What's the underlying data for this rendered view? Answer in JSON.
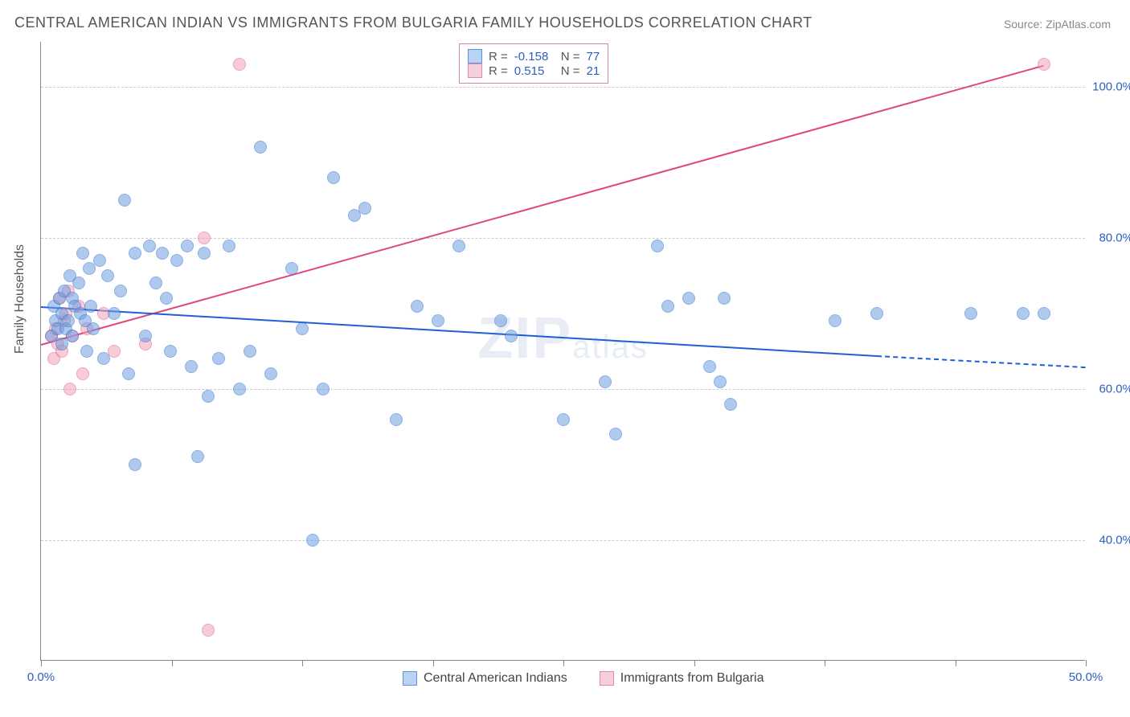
{
  "title": "CENTRAL AMERICAN INDIAN VS IMMIGRANTS FROM BULGARIA FAMILY HOUSEHOLDS CORRELATION CHART",
  "source": "Source: ZipAtlas.com",
  "y_axis_title": "Family Households",
  "watermark": {
    "big": "ZIP",
    "small": "atlas"
  },
  "chart": {
    "type": "scatter",
    "xlim": [
      0,
      50
    ],
    "ylim": [
      24,
      106
    ],
    "y_ticks": [
      40,
      60,
      80,
      100
    ],
    "y_tick_labels": [
      "40.0%",
      "60.0%",
      "80.0%",
      "100.0%"
    ],
    "x_ticks": [
      0,
      6.25,
      12.5,
      18.75,
      25,
      31.25,
      37.5,
      43.75,
      50
    ],
    "x_tick_labels": {
      "0": "0.0%",
      "50": "50.0%"
    },
    "grid_color": "#cccccc",
    "axis_color": "#888888",
    "label_color": "#2c5fbf",
    "background_color": "#ffffff",
    "marker_radius": 8,
    "marker_opacity": 0.55,
    "series": [
      {
        "name": "Central American Indians",
        "color": "#6e9fe0",
        "stroke": "#2c6fd0",
        "trend_color": "#1f5fd6",
        "R": "-0.158",
        "N": "77",
        "trend": {
          "x1": 0,
          "y1": 71,
          "x2": 40,
          "y2": 64.5,
          "x2_dash": 50,
          "y2_dash": 63
        },
        "points": [
          [
            0.5,
            67
          ],
          [
            0.6,
            71
          ],
          [
            0.7,
            69
          ],
          [
            0.8,
            68
          ],
          [
            0.9,
            72
          ],
          [
            1.0,
            66
          ],
          [
            1.0,
            70
          ],
          [
            1.1,
            73
          ],
          [
            1.2,
            68
          ],
          [
            1.3,
            69
          ],
          [
            1.4,
            75
          ],
          [
            1.5,
            67
          ],
          [
            1.5,
            72
          ],
          [
            1.6,
            71
          ],
          [
            1.8,
            74
          ],
          [
            1.9,
            70
          ],
          [
            2.0,
            78
          ],
          [
            2.1,
            69
          ],
          [
            2.2,
            65
          ],
          [
            2.3,
            76
          ],
          [
            2.4,
            71
          ],
          [
            2.5,
            68
          ],
          [
            2.8,
            77
          ],
          [
            3.0,
            64
          ],
          [
            3.2,
            75
          ],
          [
            3.5,
            70
          ],
          [
            3.8,
            73
          ],
          [
            4.0,
            85
          ],
          [
            4.2,
            62
          ],
          [
            4.5,
            78
          ],
          [
            5.0,
            67
          ],
          [
            5.2,
            79
          ],
          [
            5.5,
            74
          ],
          [
            5.8,
            78
          ],
          [
            6.0,
            72
          ],
          [
            6.2,
            65
          ],
          [
            6.5,
            77
          ],
          [
            7.0,
            79
          ],
          [
            7.2,
            63
          ],
          [
            7.5,
            51
          ],
          [
            7.8,
            78
          ],
          [
            8.0,
            59
          ],
          [
            8.5,
            64
          ],
          [
            9.0,
            79
          ],
          [
            9.5,
            60
          ],
          [
            10.0,
            65
          ],
          [
            10.5,
            92
          ],
          [
            11.0,
            62
          ],
          [
            12.0,
            76
          ],
          [
            12.5,
            68
          ],
          [
            13.0,
            40
          ],
          [
            13.5,
            60
          ],
          [
            14.0,
            88
          ],
          [
            15.0,
            83
          ],
          [
            15.5,
            84
          ],
          [
            17.0,
            56
          ],
          [
            18.0,
            71
          ],
          [
            19.0,
            69
          ],
          [
            20.0,
            79
          ],
          [
            22.0,
            69
          ],
          [
            22.5,
            67
          ],
          [
            25.0,
            56
          ],
          [
            27.0,
            61
          ],
          [
            27.5,
            54
          ],
          [
            29.5,
            79
          ],
          [
            30.0,
            71
          ],
          [
            31.0,
            72
          ],
          [
            32.0,
            63
          ],
          [
            32.5,
            61
          ],
          [
            32.7,
            72
          ],
          [
            33.0,
            58
          ],
          [
            38.0,
            69
          ],
          [
            40.0,
            70
          ],
          [
            44.5,
            70
          ],
          [
            47.0,
            70
          ],
          [
            48.0,
            70
          ],
          [
            4.5,
            50
          ]
        ]
      },
      {
        "name": "Immigrants from Bulgaria",
        "color": "#f2a3ba",
        "stroke": "#e05a85",
        "trend_color": "#e04580",
        "R": "0.515",
        "N": "21",
        "trend": {
          "x1": 0,
          "y1": 66,
          "x2": 48,
          "y2": 103
        },
        "points": [
          [
            0.5,
            67
          ],
          [
            0.6,
            64
          ],
          [
            0.7,
            68
          ],
          [
            0.8,
            66
          ],
          [
            0.9,
            72
          ],
          [
            1.0,
            65
          ],
          [
            1.1,
            69
          ],
          [
            1.2,
            70
          ],
          [
            1.3,
            73
          ],
          [
            1.4,
            60
          ],
          [
            1.5,
            67
          ],
          [
            1.8,
            71
          ],
          [
            2.0,
            62
          ],
          [
            2.2,
            68
          ],
          [
            3.0,
            70
          ],
          [
            3.5,
            65
          ],
          [
            5.0,
            66
          ],
          [
            7.8,
            80
          ],
          [
            8.0,
            28
          ],
          [
            9.5,
            103
          ],
          [
            48.0,
            103
          ]
        ]
      }
    ]
  },
  "legend_box": {
    "rows": [
      {
        "swatch_fill": "#b9d3f3",
        "swatch_border": "#5c93df",
        "r_label": "R =",
        "r_val": "-0.158",
        "n_label": "N =",
        "n_val": "77"
      },
      {
        "swatch_fill": "#f6cfda",
        "swatch_border": "#e28aa7",
        "r_label": "R =",
        "r_val": "0.515",
        "n_label": "N =",
        "n_val": "21"
      }
    ]
  },
  "bottom_legend": [
    {
      "swatch_fill": "#b9d3f3",
      "swatch_border": "#5c93df",
      "label": "Central American Indians"
    },
    {
      "swatch_fill": "#f6cfda",
      "swatch_border": "#e28aa7",
      "label": "Immigrants from Bulgaria"
    }
  ]
}
